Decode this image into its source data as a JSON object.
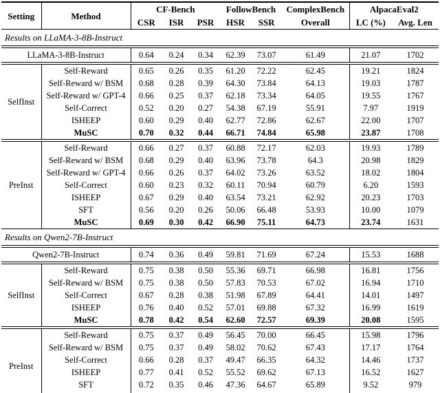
{
  "colors": {
    "text": "#000000",
    "background": "#ffffff",
    "rule": "#000000"
  },
  "table": {
    "header": {
      "setting": "Setting",
      "method": "Method",
      "groups": [
        {
          "label": "CF-Bench",
          "subs": [
            "CSR",
            "ISR",
            "PSR"
          ]
        },
        {
          "label": "FollowBench",
          "subs": [
            "HSR",
            "SSR"
          ]
        },
        {
          "label": "ComplexBench",
          "subs": [
            "Overall"
          ]
        },
        {
          "label": "AlpacaEval2",
          "subs": [
            "LC (%)",
            "Avg. Len"
          ]
        }
      ]
    },
    "sections": [
      {
        "title": "Results on LLaMA-3-8B-Instruct",
        "base": {
          "label": "LLaMA-3-8B-Instruct",
          "values": [
            "0.64",
            "0.24",
            "0.34",
            "62.39",
            "73.07",
            "61.49",
            "21.07",
            "1702"
          ]
        },
        "blocks": [
          {
            "setting": "SelfInst",
            "rows": [
              {
                "method": "Self-Reward",
                "bold": false,
                "values": [
                  "0.65",
                  "0.26",
                  "0.35",
                  "61.20",
                  "72.22",
                  "62.45",
                  "19.21",
                  "1824"
                ]
              },
              {
                "method": "Self-Reward w/ BSM",
                "bold": false,
                "values": [
                  "0.68",
                  "0.28",
                  "0.39",
                  "64.30",
                  "73.84",
                  "64.13",
                  "19.03",
                  "1787"
                ]
              },
              {
                "method": "Self-Reward w/ GPT-4",
                "bold": false,
                "values": [
                  "0.66",
                  "0.25",
                  "0.37",
                  "62.18",
                  "73.34",
                  "64.05",
                  "19.55",
                  "1767"
                ]
              },
              {
                "method": "Self-Correct",
                "bold": false,
                "values": [
                  "0.52",
                  "0.20",
                  "0.27",
                  "54.38",
                  "67.19",
                  "55.91",
                  "7.97",
                  "1919"
                ]
              },
              {
                "method": "ISHEEP",
                "bold": false,
                "values": [
                  "0.60",
                  "0.29",
                  "0.40",
                  "62.77",
                  "72.86",
                  "62.67",
                  "22.00",
                  "1707"
                ]
              },
              {
                "method": "MuSC",
                "bold": true,
                "values": [
                  "0.70",
                  "0.32",
                  "0.44",
                  "66.71",
                  "74.84",
                  "65.98",
                  "23.87",
                  "1708"
                ]
              }
            ]
          },
          {
            "setting": "PreInst",
            "rows": [
              {
                "method": "Self-Reward",
                "bold": false,
                "values": [
                  "0.66",
                  "0.27",
                  "0.37",
                  "60.88",
                  "72.17",
                  "62.03",
                  "19.93",
                  "1789"
                ]
              },
              {
                "method": "Self-Reward w/ BSM",
                "bold": false,
                "values": [
                  "0.68",
                  "0.29",
                  "0.40",
                  "63.96",
                  "73.78",
                  "64.3",
                  "20.98",
                  "1829"
                ]
              },
              {
                "method": "Self-Reward w/ GPT-4",
                "bold": false,
                "values": [
                  "0.66",
                  "0.26",
                  "0.37",
                  "64.02",
                  "73.26",
                  "63.52",
                  "18.02",
                  "1804"
                ]
              },
              {
                "method": "Self-Correct",
                "bold": false,
                "values": [
                  "0.60",
                  "0.23",
                  "0.32",
                  "60.11",
                  "70.94",
                  "60.79",
                  "6.20",
                  "1593"
                ]
              },
              {
                "method": "ISHEEP",
                "bold": false,
                "values": [
                  "0.67",
                  "0.29",
                  "0.40",
                  "63.54",
                  "73.21",
                  "62.92",
                  "20.23",
                  "1703"
                ]
              },
              {
                "method": "SFT",
                "bold": false,
                "values": [
                  "0.56",
                  "0.20",
                  "0.26",
                  "50.06",
                  "66.48",
                  "53.93",
                  "10.00",
                  "1079"
                ]
              },
              {
                "method": "MuSC",
                "bold": true,
                "values": [
                  "0.69",
                  "0.30",
                  "0.42",
                  "66.90",
                  "75.11",
                  "64.73",
                  "23.74",
                  "1631"
                ]
              }
            ]
          }
        ]
      },
      {
        "title": "Results on Qwen2-7B-Instruct",
        "base": {
          "label": "Qwen2-7B-Instruct",
          "values": [
            "0.74",
            "0.36",
            "0.49",
            "59.81",
            "71.69",
            "67.24",
            "15.53",
            "1688"
          ]
        },
        "blocks": [
          {
            "setting": "SelfInst",
            "rows": [
              {
                "method": "Self-Reward",
                "bold": false,
                "values": [
                  "0.75",
                  "0.38",
                  "0.50",
                  "55.36",
                  "69.71",
                  "66.98",
                  "16.81",
                  "1756"
                ]
              },
              {
                "method": "Self-Reward w/ BSM",
                "bold": false,
                "values": [
                  "0.75",
                  "0.38",
                  "0.50",
                  "57.83",
                  "70.53",
                  "67.02",
                  "16.94",
                  "1710"
                ]
              },
              {
                "method": "Self-Correct",
                "bold": false,
                "values": [
                  "0.67",
                  "0.28",
                  "0.38",
                  "51.98",
                  "67.89",
                  "64.41",
                  "14.01",
                  "1497"
                ]
              },
              {
                "method": "ISHEEP",
                "bold": false,
                "values": [
                  "0.76",
                  "0.40",
                  "0.52",
                  "57.01",
                  "69.88",
                  "67.32",
                  "16.99",
                  "1619"
                ]
              },
              {
                "method": "MuSC",
                "bold": true,
                "values": [
                  "0.78",
                  "0.42",
                  "0.54",
                  "62.60",
                  "72.57",
                  "69.39",
                  "20.08",
                  "1595"
                ]
              }
            ]
          },
          {
            "setting": "PreInst",
            "rows": [
              {
                "method": "Self-Reward",
                "bold": false,
                "values": [
                  "0.75",
                  "0.37",
                  "0.49",
                  "56.45",
                  "70.00",
                  "66.45",
                  "15.98",
                  "1796"
                ]
              },
              {
                "method": "Self-Reward w/ BSM",
                "bold": false,
                "values": [
                  "0.75",
                  "0.37",
                  "0.49",
                  "58.02",
                  "70.62",
                  "67.43",
                  "17.17",
                  "1764"
                ]
              },
              {
                "method": "Self-Correct",
                "bold": false,
                "values": [
                  "0.66",
                  "0.28",
                  "0.37",
                  "49.47",
                  "66.35",
                  "64.32",
                  "14.46",
                  "1737"
                ]
              },
              {
                "method": "ISHEEP",
                "bold": false,
                "values": [
                  "0.77",
                  "0.41",
                  "0.52",
                  "55.52",
                  "69.62",
                  "67.13",
                  "16.52",
                  "1627"
                ]
              },
              {
                "method": "SFT",
                "bold": false,
                "values": [
                  "0.72",
                  "0.35",
                  "0.46",
                  "47.36",
                  "64.67",
                  "65.89",
                  "9.52",
                  "979"
                ]
              },
              {
                "method": "MuSC",
                "bold": true,
                "values": [
                  "0.79",
                  "0.44",
                  "0.55",
                  "62.73",
                  "73.09",
                  "70.00",
                  "20.29",
                  "1613"
                ]
              }
            ]
          }
        ]
      }
    ]
  }
}
